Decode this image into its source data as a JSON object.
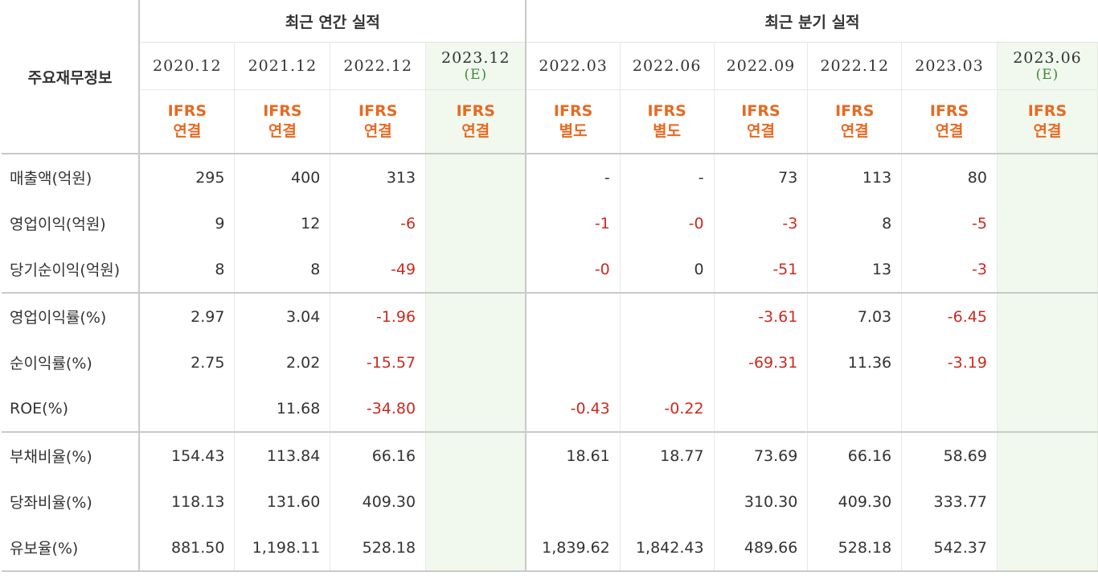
{
  "table": {
    "corner_label": "주요재무정보",
    "group_annual": "최근 연간 실적",
    "group_quarter": "최근 분기 실적",
    "columns": [
      {
        "date": "2020.12",
        "est": "",
        "type1": "IFRS",
        "type2": "연결"
      },
      {
        "date": "2021.12",
        "est": "",
        "type1": "IFRS",
        "type2": "연결"
      },
      {
        "date": "2022.12",
        "est": "",
        "type1": "IFRS",
        "type2": "연결"
      },
      {
        "date": "2023.12",
        "est": "(E)",
        "type1": "IFRS",
        "type2": "연결"
      },
      {
        "date": "2022.03",
        "est": "",
        "type1": "IFRS",
        "type2": "별도"
      },
      {
        "date": "2022.06",
        "est": "",
        "type1": "IFRS",
        "type2": "별도"
      },
      {
        "date": "2022.09",
        "est": "",
        "type1": "IFRS",
        "type2": "연결"
      },
      {
        "date": "2022.12",
        "est": "",
        "type1": "IFRS",
        "type2": "연결"
      },
      {
        "date": "2023.03",
        "est": "",
        "type1": "IFRS",
        "type2": "연결"
      },
      {
        "date": "2023.06",
        "est": "(E)",
        "type1": "IFRS",
        "type2": "연결"
      }
    ],
    "rows": [
      {
        "label": "매출액(억원)",
        "values": [
          "295",
          "400",
          "313",
          "",
          "-",
          "-",
          "73",
          "113",
          "80",
          ""
        ]
      },
      {
        "label": "영업이익(억원)",
        "values": [
          "9",
          "12",
          "-6",
          "",
          "-1",
          "-0",
          "-3",
          "8",
          "-5",
          ""
        ]
      },
      {
        "label": "당기순이익(억원)",
        "values": [
          "8",
          "8",
          "-49",
          "",
          "-0",
          "0",
          "-51",
          "13",
          "-3",
          ""
        ]
      },
      {
        "label": "영업이익률(%)",
        "values": [
          "2.97",
          "3.04",
          "-1.96",
          "",
          "",
          "",
          "-3.61",
          "7.03",
          "-6.45",
          ""
        ]
      },
      {
        "label": "순이익률(%)",
        "values": [
          "2.75",
          "2.02",
          "-15.57",
          "",
          "",
          "",
          "-69.31",
          "11.36",
          "-3.19",
          ""
        ]
      },
      {
        "label": "ROE(%)",
        "values": [
          "",
          "11.68",
          "-34.80",
          "",
          "-0.43",
          "-0.22",
          "",
          "",
          "",
          ""
        ]
      },
      {
        "label": "부채비율(%)",
        "values": [
          "154.43",
          "113.84",
          "66.16",
          "",
          "18.61",
          "18.77",
          "73.69",
          "66.16",
          "58.69",
          ""
        ]
      },
      {
        "label": "당좌비율(%)",
        "values": [
          "118.13",
          "131.60",
          "409.30",
          "",
          "",
          "",
          "310.30",
          "409.30",
          "333.77",
          ""
        ]
      },
      {
        "label": "유보율(%)",
        "values": [
          "881.50",
          "1,198.11",
          "528.18",
          "",
          "1,839.62",
          "1,842.43",
          "489.66",
          "528.18",
          "542.37",
          ""
        ]
      }
    ]
  }
}
